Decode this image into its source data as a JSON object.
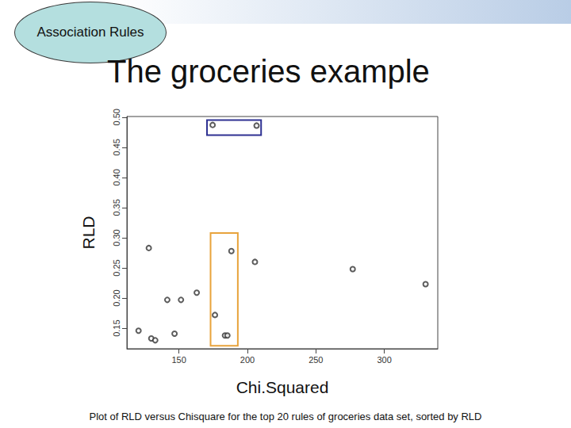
{
  "badge": "Association Rules",
  "chart_data": {
    "type": "scatter",
    "title": "The groceries example",
    "x_label": "Chi.Squared",
    "y_label": "RLD",
    "caption": "Plot of RLD versus Chisquare for the top 20  rules of groceries data set, sorted by RLD",
    "x": [
      174.6,
      206.7,
      128.0,
      188.3,
      205.5,
      276.9,
      330.1,
      163.0,
      141.5,
      151.5,
      176.3,
      120.5,
      146.8,
      129.8,
      132.7,
      183.6,
      185.4
    ],
    "values": [
      0.487,
      0.486,
      0.283,
      0.278,
      0.26,
      0.248,
      0.223,
      0.209,
      0.197,
      0.197,
      0.172,
      0.146,
      0.141,
      0.133,
      0.13,
      0.138,
      0.138
    ],
    "xlim": [
      112,
      339
    ],
    "xticks": [
      150,
      200,
      250,
      300
    ],
    "ylim": [
      0.116,
      0.501
    ],
    "yticks": [
      0.15,
      {
        "value": 0.2,
        "label": "0.20"
      },
      0.25,
      {
        "value": 0.3,
        "label": "0.30"
      },
      0.35,
      {
        "value": 0.4,
        "label": "0.40"
      },
      0.45,
      {
        "value": 0.5,
        "label": "0.50"
      }
    ],
    "color": "#333333",
    "marker": "open_circle",
    "grid": false,
    "highlights": [
      {
        "color": "#2e3192",
        "x": [
          170.5,
          210
        ],
        "y": [
          0.47,
          0.495
        ]
      },
      {
        "color": "#e8a33c",
        "x": [
          173.1,
          193
        ],
        "y": [
          0.121,
          0.308
        ]
      }
    ]
  }
}
